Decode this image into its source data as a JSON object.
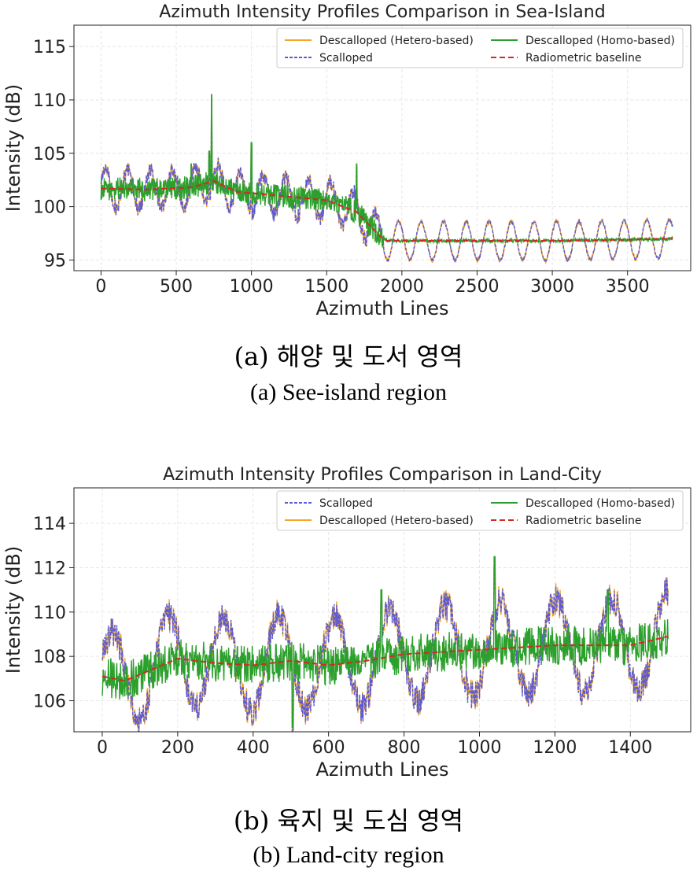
{
  "captions": {
    "a_ko": "(a) 해양 및 도서 영역",
    "a_en": "(a) See-island region",
    "b_ko": "(b) 육지 및 도심 영역",
    "b_en": "(b) Land-city region"
  },
  "colors": {
    "hetero": "#f5a623",
    "homo": "#2ca02c",
    "scalloped": "#5b5bd6",
    "baseline": "#d62728",
    "grid": "#e6e6e6"
  },
  "chart_data": [
    {
      "type": "line",
      "title": "Azimuth Intensity Profiles Comparison in Sea-Island",
      "xlabel": "Azimuth Lines",
      "ylabel": "Intensity (dB)",
      "xlim": [
        -180,
        3920
      ],
      "ylim": [
        94,
        117
      ],
      "xticks": [
        0,
        500,
        1000,
        1500,
        2000,
        2500,
        3000,
        3500
      ],
      "yticks": [
        95,
        100,
        105,
        110,
        115
      ],
      "grid": true,
      "legend_position": "top-right",
      "legend": [
        {
          "key": "hetero",
          "label": "Descalloped (Hetero-based)"
        },
        {
          "key": "homo",
          "label": "Descalloped (Homo-based)"
        },
        {
          "key": "scalloped",
          "label": "Scalloped"
        },
        {
          "key": "baseline",
          "label": "Radiometric baseline"
        }
      ],
      "baseline": {
        "x": [
          0,
          300,
          600,
          750,
          900,
          1200,
          1500,
          1700,
          1850,
          1900,
          2500,
          3000,
          3500,
          3800
        ],
        "y": [
          101.7,
          101.6,
          101.8,
          102.4,
          101.4,
          101.0,
          100.6,
          99.5,
          97.3,
          96.8,
          96.8,
          96.8,
          96.9,
          97.0
        ]
      },
      "scallop": {
        "period": 150,
        "amp_before": 1.8,
        "amp_after": 1.8,
        "x_end": 3800
      },
      "peaks": [
        {
          "x": 735,
          "y": 110.5
        },
        {
          "x": 720,
          "y": 105.2
        },
        {
          "x": 1000,
          "y": 106
        },
        {
          "x": 600,
          "y": 104
        },
        {
          "x": 1700,
          "y": 104
        }
      ]
    },
    {
      "type": "line",
      "title": "Azimuth Intensity Profiles Comparison in Land-City",
      "xlabel": "Azimuth Lines",
      "ylabel": "Intensity (dB)",
      "xlim": [
        -75,
        1560
      ],
      "ylim": [
        104.6,
        115.6
      ],
      "xticks": [
        0,
        200,
        400,
        600,
        800,
        1000,
        1200,
        1400
      ],
      "yticks": [
        106,
        108,
        110,
        112,
        114
      ],
      "grid": true,
      "legend_position": "top-right",
      "legend": [
        {
          "key": "scalloped",
          "label": "Scalloped"
        },
        {
          "key": "homo",
          "label": "Descalloped (Homo-based)"
        },
        {
          "key": "hetero",
          "label": "Descalloped (Hetero-based)"
        },
        {
          "key": "baseline",
          "label": "Radiometric baseline"
        }
      ],
      "baseline": {
        "x": [
          0,
          60,
          200,
          300,
          400,
          500,
          600,
          700,
          800,
          1000,
          1200,
          1400,
          1500
        ],
        "y": [
          107.1,
          106.9,
          107.9,
          107.7,
          107.6,
          107.8,
          107.6,
          107.8,
          108.1,
          108.3,
          108.5,
          108.5,
          108.9
        ]
      },
      "scallop": {
        "period": 147,
        "amp_before": 2.1,
        "amp_after": 2.1,
        "x_end": 1500
      },
      "peaks": [
        {
          "x": 1040,
          "y": 112.5
        },
        {
          "x": 740,
          "y": 111
        },
        {
          "x": 1340,
          "y": 111
        },
        {
          "x": 505,
          "y": 104.8
        }
      ]
    }
  ]
}
